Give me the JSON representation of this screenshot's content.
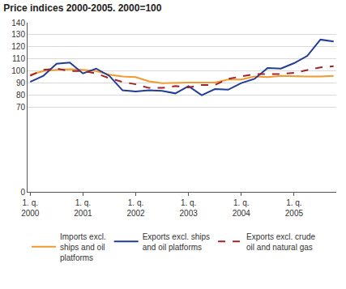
{
  "chart_data": {
    "type": "line",
    "title": "Price indices 2000-2005. 2000=100",
    "categories": [
      "1. q.\n2000",
      null,
      null,
      null,
      "1. q.\n2001",
      null,
      null,
      null,
      "1. q.\n2002",
      null,
      null,
      null,
      "1. q.\n2003",
      null,
      null,
      null,
      "1. q.\n2004",
      null,
      null,
      null,
      "1. q.\n2005",
      null,
      null,
      null
    ],
    "series": [
      {
        "name": "Imports excl.\nships and oil\nplatforms",
        "color": "#f39a2e",
        "line_style": "solid",
        "values": [
          97,
          100,
          101,
          101.5,
          101,
          100,
          97,
          95.5,
          95,
          91.5,
          90,
          90.5,
          90.5,
          90.5,
          90.5,
          93,
          93,
          95.5,
          95,
          96,
          95.5,
          95.5,
          95.5,
          96
        ]
      },
      {
        "name": "Exports excl. ships\nand oil platforms",
        "color": "#1f3c96",
        "line_style": "solid",
        "values": [
          91,
          96,
          106,
          107,
          98,
          102,
          96,
          84,
          83,
          84,
          83.5,
          81.5,
          87.5,
          80,
          85,
          84.5,
          90,
          93.5,
          102.5,
          102,
          106.5,
          112.5,
          126,
          124.5
        ]
      },
      {
        "name": "Exports excl. crude\noil and natural gas",
        "color": "#a3232b",
        "line_style": "dash",
        "values": [
          96,
          101,
          102,
          100,
          100,
          98,
          94,
          91,
          89,
          86,
          86,
          87.5,
          86.5,
          88.5,
          88.5,
          93.5,
          95.5,
          97.5,
          97.5,
          97.5,
          98.5,
          100.5,
          103,
          104
        ]
      }
    ],
    "ylim": [
      0,
      140
    ],
    "yticks": [
      0,
      70,
      80,
      90,
      100,
      110,
      120,
      130,
      140
    ],
    "grid": true,
    "legend": "bottom"
  }
}
